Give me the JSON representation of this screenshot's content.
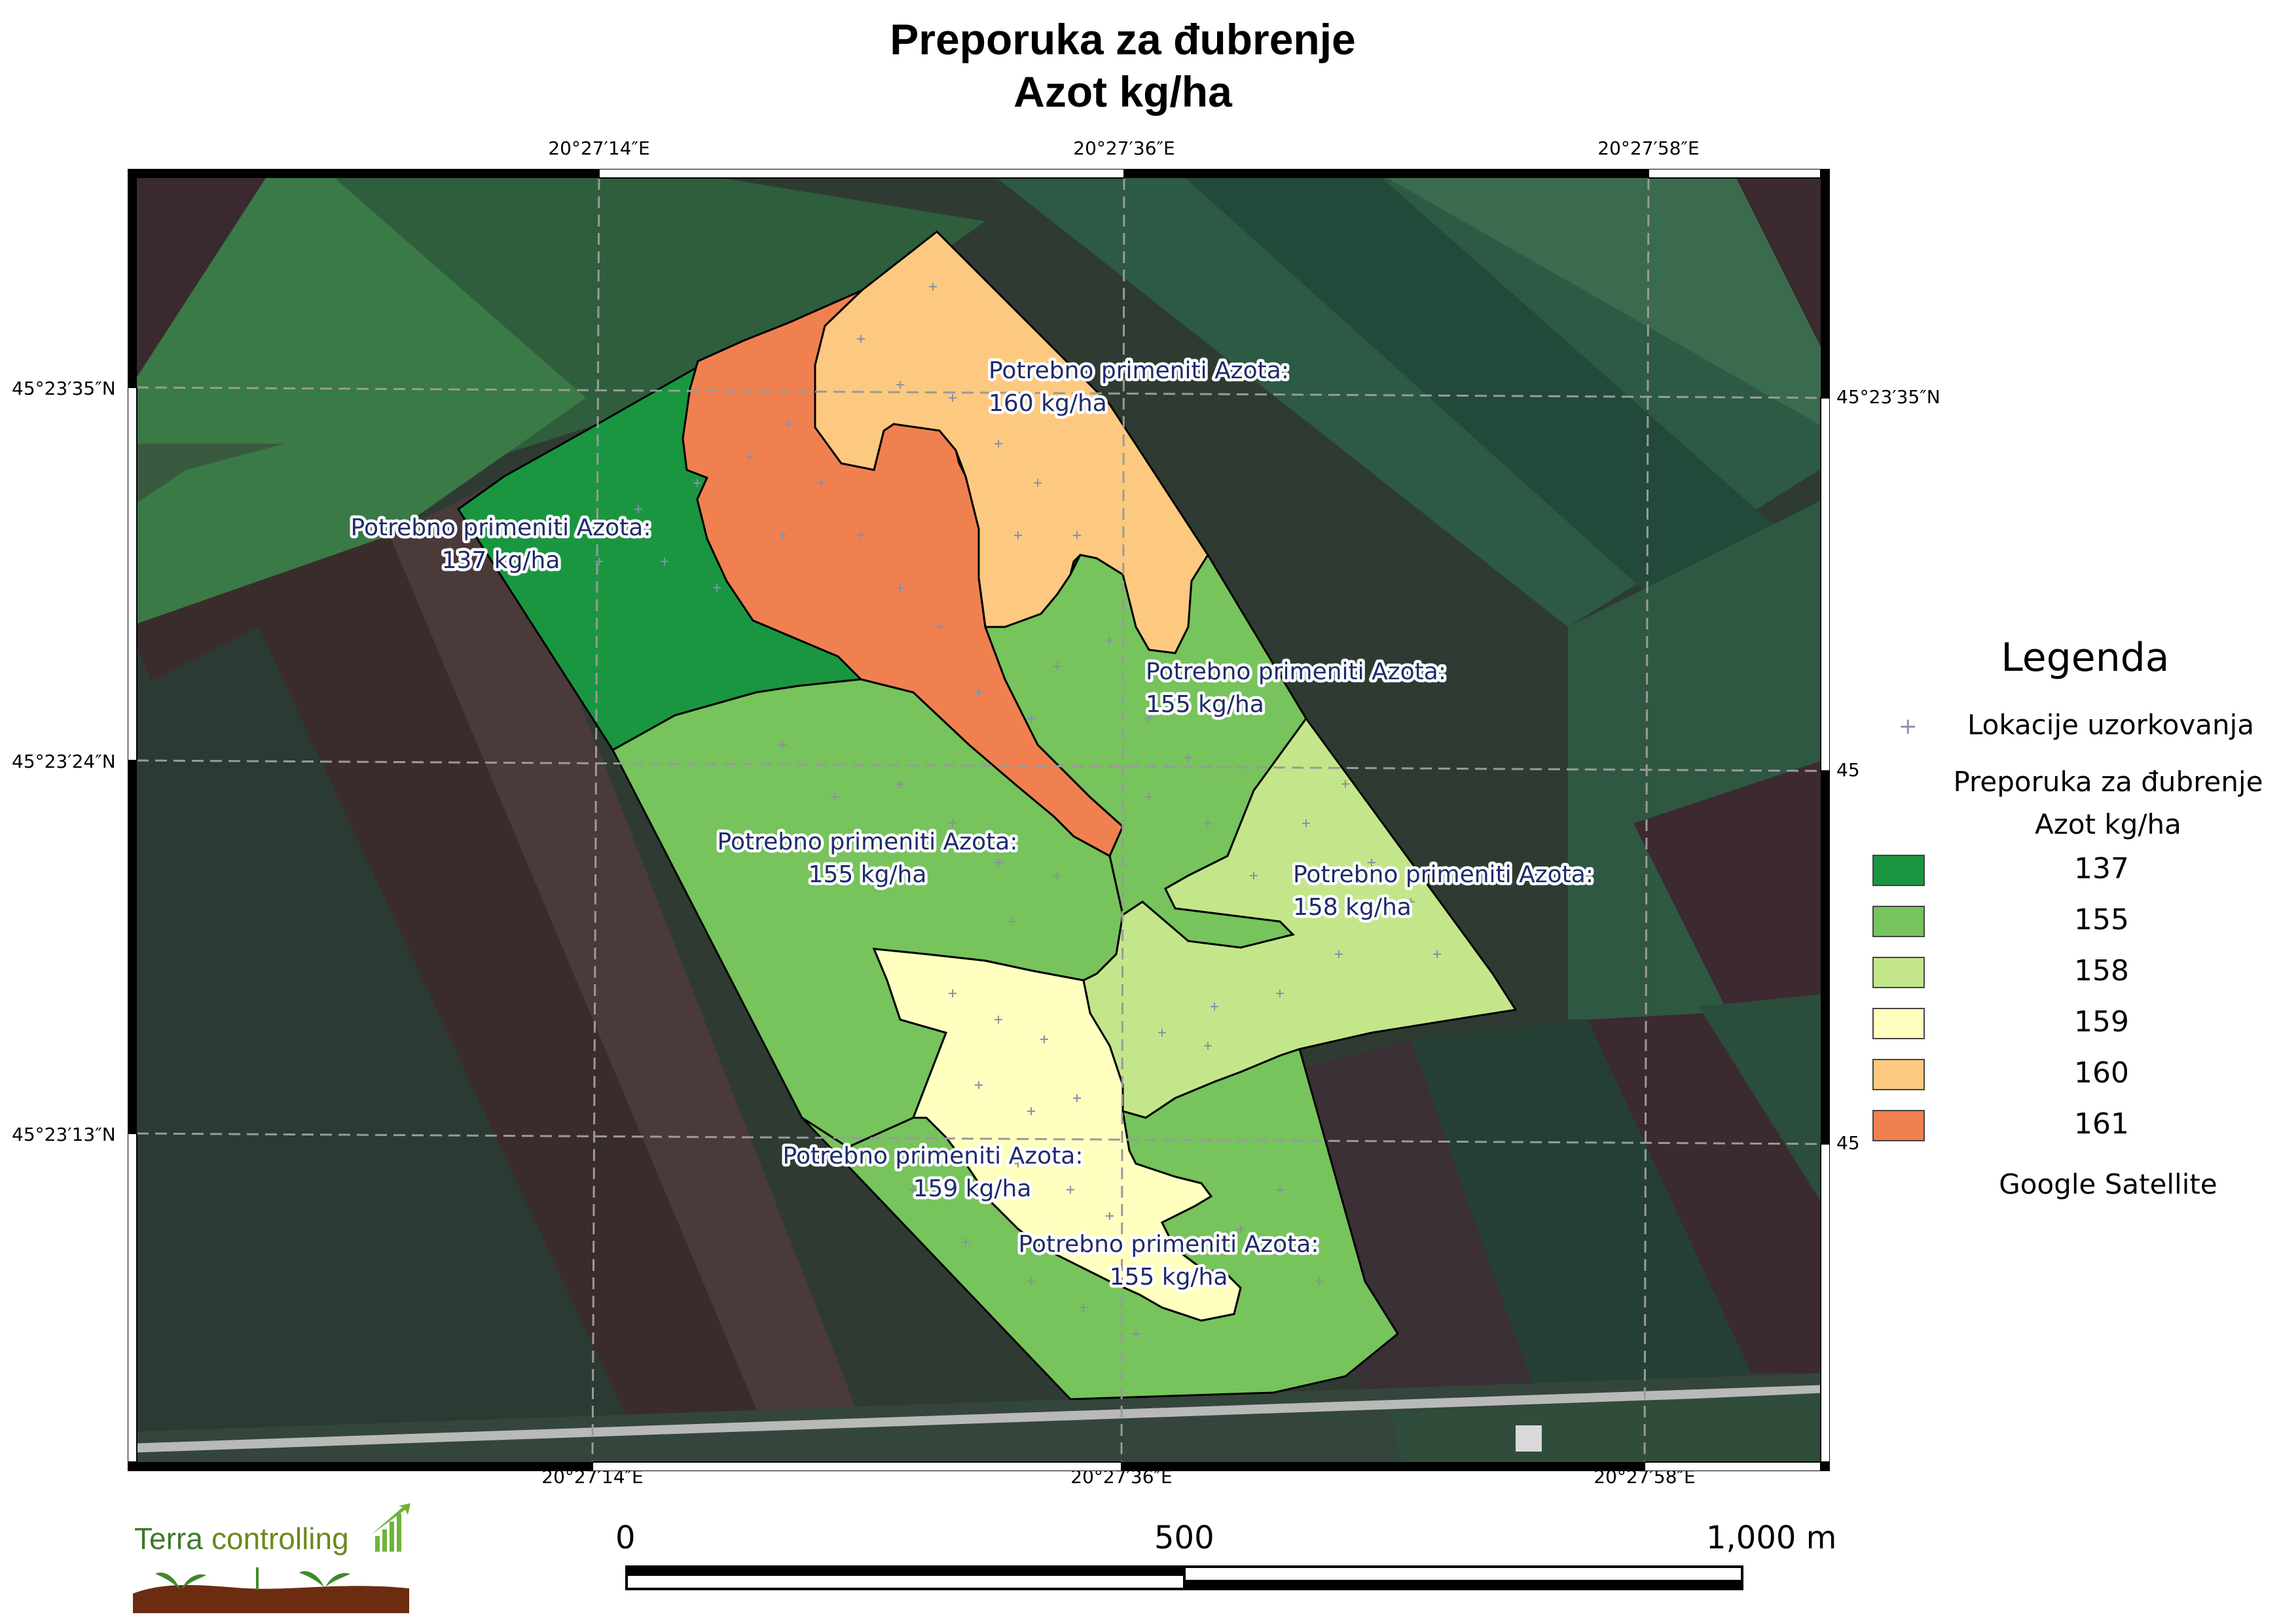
{
  "title": {
    "line1": "Preporuka za đubrenje",
    "line2": "Azot kg/ha"
  },
  "grid": {
    "lon_labels": [
      "20°27′14″E",
      "20°27′36″E",
      "20°27′58″E"
    ],
    "lat_labels": [
      "45°23′35″N",
      "45°23′24″N",
      "45°23′13″N"
    ],
    "right_lat_labels": [
      "45°23′35″N",
      "45",
      "45"
    ]
  },
  "zones": [
    {
      "value": 137,
      "label_line1": "Potrebno primeniti Azota:",
      "label_line2": "137 kg/ha",
      "color": "#1a9641"
    },
    {
      "value": 161,
      "label_line1": "",
      "label_line2": "",
      "color": "#f08050"
    },
    {
      "value": 160,
      "label_line1": "Potrebno primeniti Azota:",
      "label_line2": "160 kg/ha",
      "color": "#fdc980"
    },
    {
      "value": 155,
      "label_line1": "Potrebno primeniti Azota:",
      "label_line2": "155 kg/ha",
      "color": "#77c35c"
    },
    {
      "value": 155,
      "label_line1": "Potrebno primeniti Azota:",
      "label_line2": "155 kg/ha",
      "color": "#77c35c"
    },
    {
      "value": 158,
      "label_line1": "Potrebno primeniti Azota:",
      "label_line2": "158 kg/ha",
      "color": "#c4e68a"
    },
    {
      "value": 159,
      "label_line1": "Potrebno primeniti Azota:",
      "label_line2": "159 kg/ha",
      "color": "#ffffc0"
    },
    {
      "value": 155,
      "label_line1": "Potrebno primeniti Azota:",
      "label_line2": "155 kg/ha",
      "color": "#77c35c"
    }
  ],
  "legend": {
    "title": "Legenda",
    "sampling": "Lokacije uzorkovanja",
    "layer_line1": "Preporuka za đubrenje",
    "layer_line2": "Azot kg/ha",
    "classes": [
      {
        "value": "137",
        "color": "#1a9641"
      },
      {
        "value": "155",
        "color": "#77c35c"
      },
      {
        "value": "158",
        "color": "#c4e68a"
      },
      {
        "value": "159",
        "color": "#ffffc0"
      },
      {
        "value": "160",
        "color": "#fdc980"
      },
      {
        "value": "161",
        "color": "#f08050"
      }
    ],
    "basemap": "Google Satellite"
  },
  "scalebar": {
    "labels": [
      "0",
      "500",
      "1,000 m"
    ]
  },
  "logo": {
    "text_part1": "Terra",
    "text_part2": "controlling"
  }
}
